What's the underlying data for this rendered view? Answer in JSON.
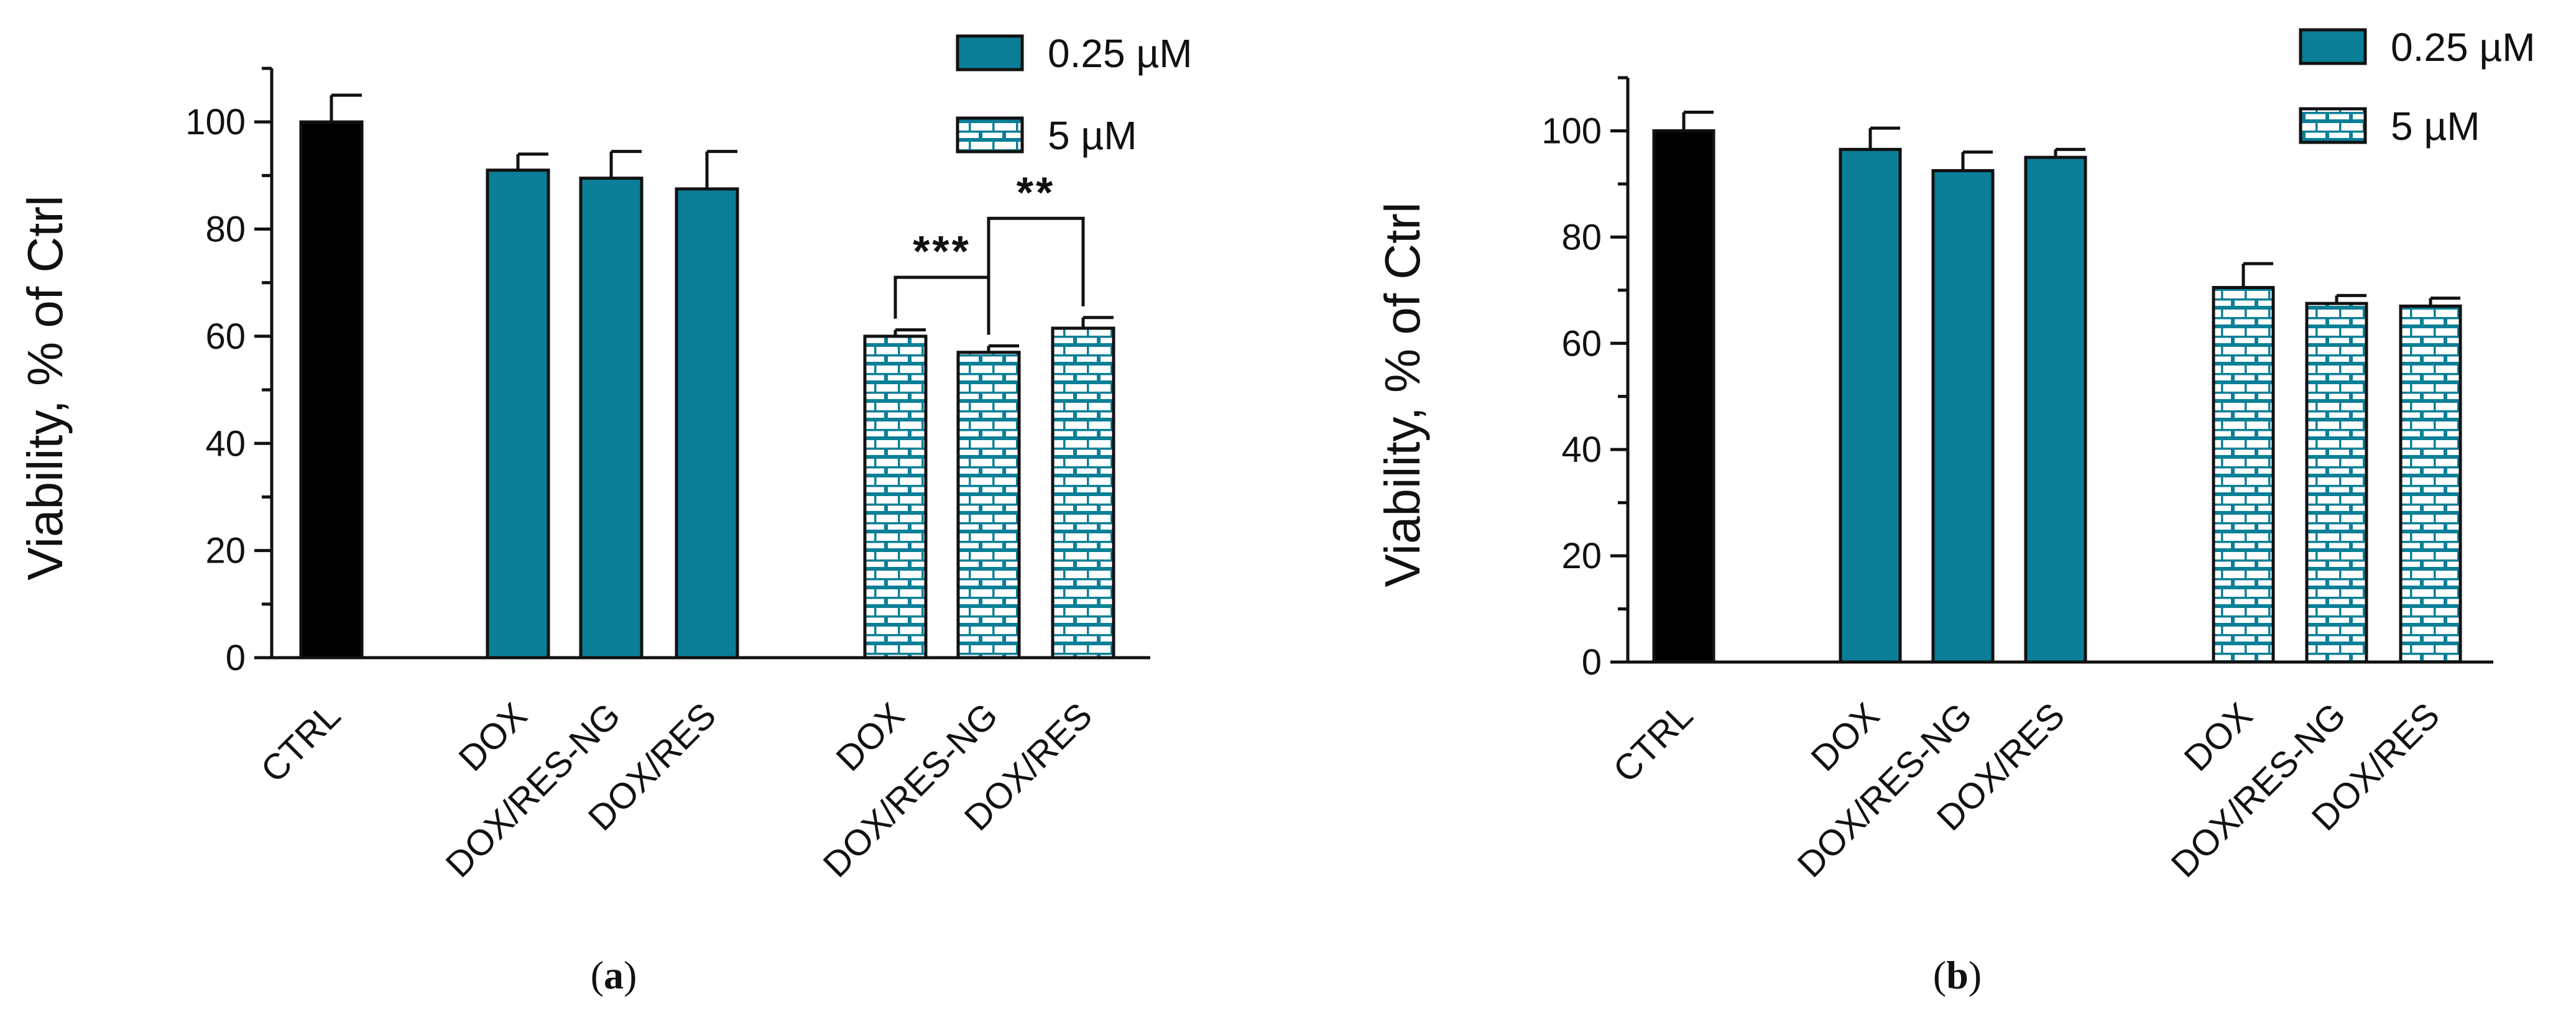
{
  "chart_data": [
    {
      "type": "bar",
      "panel": "a",
      "caption": "(a)",
      "caption_parts": [
        "(",
        "a",
        ")"
      ],
      "ylabel": "Viability, % of Ctrl",
      "xlabel": "",
      "ylim": [
        0,
        110
      ],
      "yticks": [
        "0",
        "20",
        "40",
        "60",
        "80",
        "100"
      ],
      "ytick_values": [
        0,
        20,
        40,
        60,
        80,
        100
      ],
      "legend_position": "top-right",
      "legend": [
        {
          "label": "0.25 µM",
          "style": "solid"
        },
        {
          "label": "5 µM",
          "style": "brick"
        }
      ],
      "categories": [
        "CTRL",
        "DOX",
        "DOX/RES-NG",
        "DOX/RES",
        "DOX",
        "DOX/RES-NG",
        "DOX/RES"
      ],
      "values": [
        100,
        91,
        89.5,
        87.5,
        60,
        57,
        61.5
      ],
      "errors": [
        5,
        3,
        5,
        7,
        1.2,
        1.2,
        2
      ],
      "bar_styles": [
        "black",
        "solid",
        "solid",
        "solid",
        "brick",
        "brick",
        "brick"
      ],
      "significance": [
        {
          "from": 4,
          "to": 5,
          "label": "***",
          "y": 71
        },
        {
          "from": 5,
          "to": 6,
          "label": "**",
          "y": 82
        }
      ]
    },
    {
      "type": "bar",
      "panel": "b",
      "caption": "(b)",
      "caption_parts": [
        "(",
        "b",
        ")"
      ],
      "ylabel": "Viability, % of Ctrl",
      "xlabel": "",
      "ylim": [
        0,
        110
      ],
      "yticks": [
        "0",
        "20",
        "40",
        "60",
        "80",
        "100"
      ],
      "ytick_values": [
        0,
        20,
        40,
        60,
        80,
        100
      ],
      "legend_position": "top-right",
      "legend": [
        {
          "label": "0.25 µM",
          "style": "solid"
        },
        {
          "label": "5 µM",
          "style": "brick"
        }
      ],
      "categories": [
        "CTRL",
        "DOX",
        "DOX/RES-NG",
        "DOX/RES",
        "DOX",
        "DOX/RES-NG",
        "DOX/RES"
      ],
      "values": [
        100,
        96.5,
        92.5,
        95,
        70.5,
        67.5,
        67
      ],
      "errors": [
        3.5,
        4,
        3.5,
        1.5,
        4.5,
        1.5,
        1.5
      ],
      "bar_styles": [
        "black",
        "solid",
        "solid",
        "solid",
        "brick",
        "brick",
        "brick"
      ],
      "significance": []
    }
  ],
  "colors": {
    "teal": "#0a7f97",
    "black": "#000000",
    "axis": "#111111",
    "brick_fill": "#ffffff"
  }
}
